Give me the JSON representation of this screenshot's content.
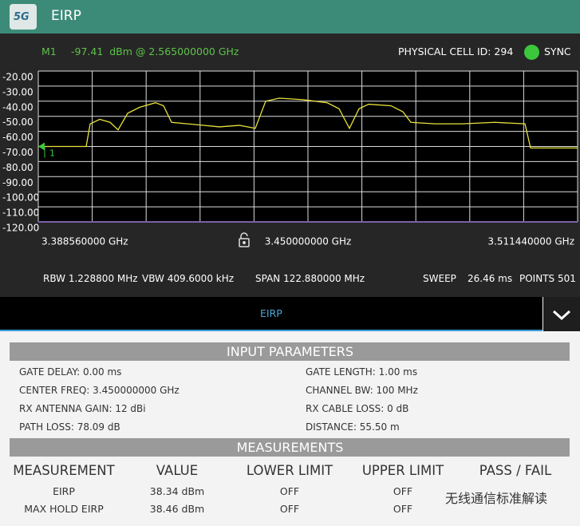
{
  "header": {
    "logo": "5G",
    "title": "EIRP"
  },
  "status": {
    "marker": "M1",
    "readout": "-97.41  dBm @ 2.565000000 GHz",
    "cell_id": "PHYSICAL CELL ID: 294",
    "sync": "SYNC"
  },
  "chart_data": {
    "type": "line",
    "x": [
      3.38856,
      3.39947,
      3.40038,
      3.40256,
      3.40492,
      3.40674,
      3.40892,
      3.41165,
      3.41528,
      3.4171,
      3.41892,
      3.42255,
      3.42619,
      3.42982,
      3.43437,
      3.438,
      3.44037,
      3.44346,
      3.44891,
      3.45437,
      3.45709,
      3.45945,
      3.46164,
      3.46382,
      3.46891,
      3.47163,
      3.47345,
      3.4789,
      3.48527,
      3.49254,
      3.49945,
      3.50072,
      3.51144
    ],
    "series": [
      {
        "color": "#e8e23c",
        "values": [
          -70,
          -70,
          -55,
          -52,
          -54,
          -59,
          -48,
          -44,
          -41,
          -43,
          -54,
          -55,
          -56,
          -57,
          -56,
          -58,
          -40,
          -38,
          -39,
          -41,
          -45,
          -58,
          -45,
          -42,
          -43,
          -47,
          -54,
          -55,
          -55,
          -54,
          -55,
          -71,
          -71
        ]
      }
    ],
    "xlim": [
      3.38856,
      3.51144
    ],
    "xticks": [
      {
        "value": 3.38856,
        "label": "3.388560000 GHz"
      },
      {
        "value": 3.45,
        "label": "3.450000000 GHz"
      },
      {
        "value": 3.51144,
        "label": "3.511440000 GHz"
      }
    ],
    "ylim": [
      -120,
      -20
    ],
    "yticks": [
      {
        "value": -20,
        "label": "-20.00"
      },
      {
        "value": -30,
        "label": "-30.00"
      },
      {
        "value": -40,
        "label": "-40.00"
      },
      {
        "value": -50,
        "label": "-50.00"
      },
      {
        "value": -60,
        "label": "-60.00"
      },
      {
        "value": -70,
        "label": "-70.00"
      },
      {
        "value": -80,
        "label": "-80.00"
      },
      {
        "value": -90,
        "label": "-90.00"
      },
      {
        "value": -100,
        "label": "-100.00"
      },
      {
        "value": -110,
        "label": "-110.00"
      },
      {
        "value": -120,
        "label": "-120.00"
      }
    ],
    "xgrid": 10,
    "grid": true,
    "marker_label": "1"
  },
  "settings": {
    "rbw": "RBW 1.228800 MHz",
    "vbw": "VBW 409.6000 kHz",
    "span": "SPAN 122.880000 MHz",
    "sweep": "SWEEP",
    "sweep_time": "26.46 ms",
    "points": "POINTS 501"
  },
  "tab": {
    "label": "EIRP"
  },
  "input": {
    "title": "INPUT PARAMETERS",
    "items": [
      "GATE DELAY: 0.00 ms",
      "GATE LENGTH: 1.00 ms",
      "CENTER FREQ: 3.450000000 GHz",
      "CHANNEL BW: 100 MHz",
      "RX ANTENNA GAIN: 12 dBi",
      "RX CABLE LOSS: 0 dB",
      "PATH LOSS: 78.09 dB",
      "DISTANCE: 55.50 m"
    ]
  },
  "measurements": {
    "title": "MEASUREMENTS",
    "columns": [
      "MEASUREMENT",
      "VALUE",
      "LOWER LIMIT",
      "UPPER LIMIT",
      "PASS / FAIL"
    ],
    "rows": [
      [
        "EIRP",
        "38.34 dBm",
        "OFF",
        "OFF"
      ],
      [
        "MAX HOLD EIRP",
        "38.46 dBm",
        "OFF",
        "OFF"
      ]
    ]
  },
  "watermark": "无线通信标准解读"
}
